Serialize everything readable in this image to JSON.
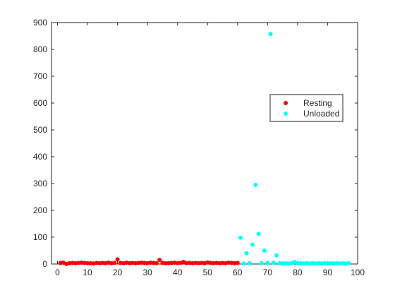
{
  "chart_data": {
    "type": "scatter",
    "xlim": [
      -2,
      100
    ],
    "ylim": [
      0,
      900
    ],
    "xticks": [
      0,
      10,
      20,
      30,
      40,
      50,
      60,
      70,
      80,
      90,
      100
    ],
    "yticks": [
      0,
      100,
      200,
      300,
      400,
      500,
      600,
      700,
      800,
      900
    ],
    "grid": false,
    "legend_position": "right",
    "series": [
      {
        "name": "Resting",
        "color": "#ff0000",
        "x": [
          1,
          2,
          3,
          4,
          5,
          6,
          7,
          8,
          9,
          10,
          11,
          12,
          13,
          14,
          15,
          16,
          17,
          18,
          19,
          20,
          21,
          22,
          23,
          24,
          25,
          26,
          27,
          28,
          29,
          30,
          31,
          32,
          33,
          34,
          35,
          36,
          37,
          38,
          39,
          40,
          41,
          42,
          43,
          44,
          45,
          46,
          47,
          48,
          49,
          50,
          51,
          52,
          53,
          54,
          55,
          56,
          57,
          58,
          59,
          60
        ],
        "y": [
          4,
          5,
          0,
          3,
          4,
          3,
          4,
          5,
          4,
          3,
          3,
          2,
          4,
          3,
          4,
          3,
          5,
          3,
          4,
          17,
          4,
          3,
          5,
          3,
          4,
          3,
          4,
          5,
          4,
          3,
          5,
          4,
          3,
          15,
          4,
          3,
          3,
          4,
          5,
          3,
          4,
          8,
          3,
          4,
          3,
          4,
          3,
          4,
          3,
          6,
          4,
          3,
          4,
          3,
          4,
          3,
          5,
          4,
          3,
          4
        ]
      },
      {
        "name": "Unloaded",
        "color": "#00ffff",
        "x": [
          61,
          62,
          63,
          64,
          65,
          66,
          67,
          68,
          69,
          70,
          71,
          72,
          73,
          74,
          75,
          76,
          77,
          78,
          79,
          80,
          81,
          82,
          83,
          84,
          85,
          86,
          87,
          88,
          89,
          90,
          91,
          92,
          93,
          94,
          95,
          96,
          97
        ],
        "y": [
          98,
          2,
          40,
          3,
          72,
          295,
          112,
          3,
          50,
          4,
          858,
          5,
          32,
          3,
          2,
          3,
          2,
          3,
          8,
          2,
          3,
          2,
          3,
          2,
          3,
          2,
          3,
          2,
          3,
          2,
          3,
          2,
          3,
          2,
          3,
          2,
          3
        ]
      }
    ]
  }
}
